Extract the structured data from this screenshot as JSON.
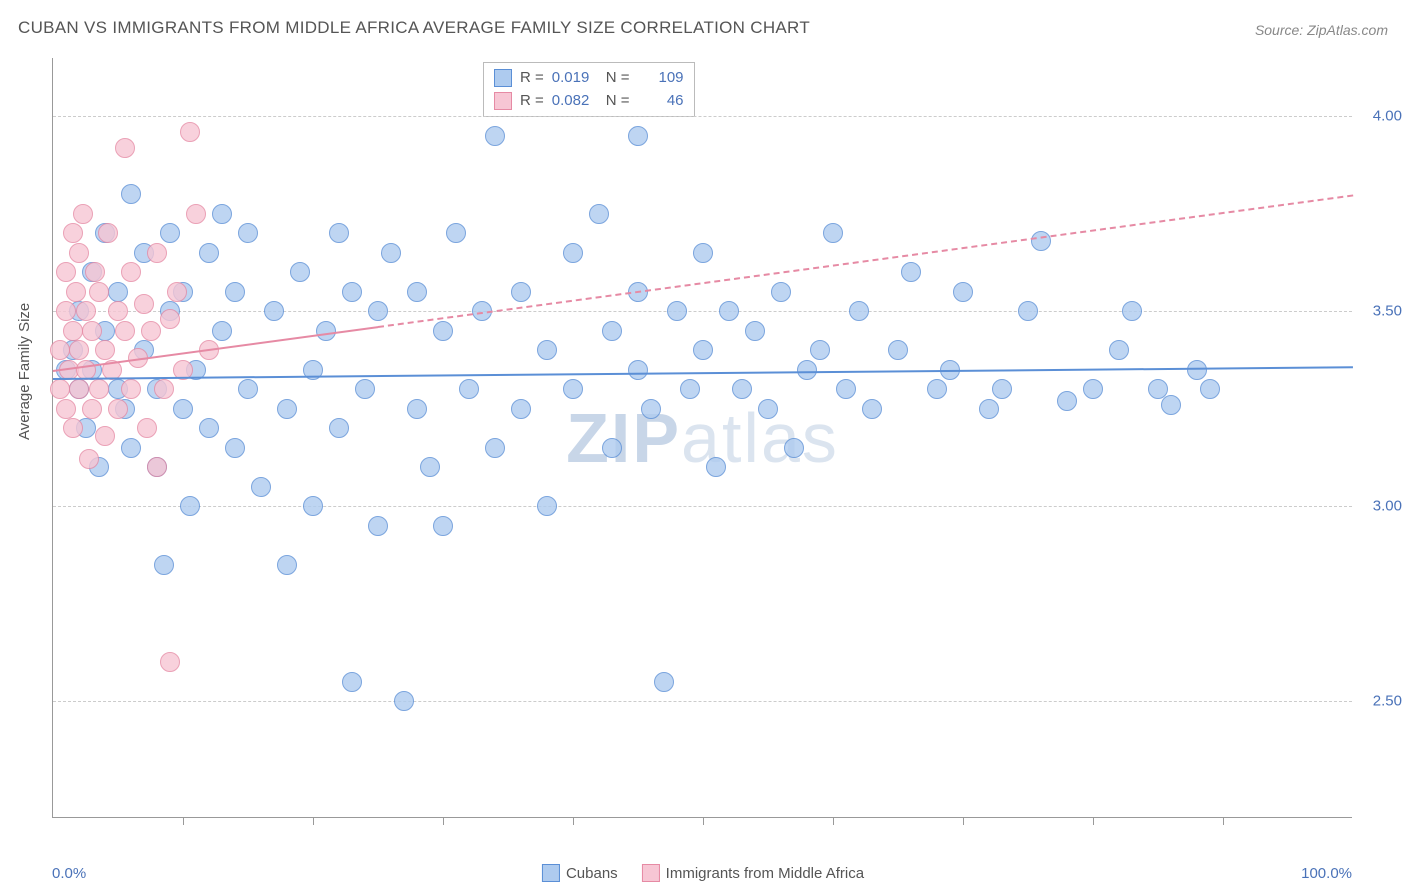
{
  "title": "CUBAN VS IMMIGRANTS FROM MIDDLE AFRICA AVERAGE FAMILY SIZE CORRELATION CHART",
  "source": "Source: ZipAtlas.com",
  "ylabel": "Average Family Size",
  "watermark_bold": "ZIP",
  "watermark_rest": "atlas",
  "chart": {
    "type": "scatter",
    "xlim": [
      0,
      100
    ],
    "ylim": [
      2.2,
      4.15
    ],
    "x_tick_step": 10,
    "y_ticks": [
      2.5,
      3.0,
      3.5,
      4.0
    ],
    "x_min_label": "0.0%",
    "x_max_label": "100.0%",
    "grid_color": "#cccccc",
    "axis_color": "#999999",
    "background_color": "#ffffff",
    "tick_label_color": "#4a72b8",
    "marker_radius": 10,
    "marker_stroke_width": 1.5,
    "marker_fill_opacity": 0.35,
    "series": [
      {
        "name": "Cubans",
        "stroke": "#5b8fd6",
        "fill": "#aecbef",
        "R": "0.019",
        "N": "109",
        "trend": {
          "y_at_x0": 3.33,
          "y_at_x100": 3.36,
          "solid_until_x": 100,
          "width": 2
        },
        "points": [
          [
            1,
            3.35
          ],
          [
            1.5,
            3.4
          ],
          [
            2,
            3.3
          ],
          [
            2,
            3.5
          ],
          [
            2.5,
            3.2
          ],
          [
            3,
            3.6
          ],
          [
            3,
            3.35
          ],
          [
            3.5,
            3.1
          ],
          [
            4,
            3.7
          ],
          [
            4,
            3.45
          ],
          [
            5,
            3.3
          ],
          [
            5,
            3.55
          ],
          [
            5.5,
            3.25
          ],
          [
            6,
            3.8
          ],
          [
            6,
            3.15
          ],
          [
            7,
            3.4
          ],
          [
            7,
            3.65
          ],
          [
            8,
            3.3
          ],
          [
            8,
            3.1
          ],
          [
            8.5,
            2.85
          ],
          [
            9,
            3.5
          ],
          [
            9,
            3.7
          ],
          [
            10,
            3.25
          ],
          [
            10,
            3.55
          ],
          [
            10.5,
            3.0
          ],
          [
            11,
            3.35
          ],
          [
            12,
            3.65
          ],
          [
            12,
            3.2
          ],
          [
            13,
            3.45
          ],
          [
            13,
            3.75
          ],
          [
            14,
            3.15
          ],
          [
            14,
            3.55
          ],
          [
            15,
            3.3
          ],
          [
            15,
            3.7
          ],
          [
            16,
            3.05
          ],
          [
            17,
            3.5
          ],
          [
            18,
            2.85
          ],
          [
            18,
            3.25
          ],
          [
            19,
            3.6
          ],
          [
            20,
            3.35
          ],
          [
            20,
            3.0
          ],
          [
            21,
            3.45
          ],
          [
            22,
            3.7
          ],
          [
            22,
            3.2
          ],
          [
            23,
            2.55
          ],
          [
            23,
            3.55
          ],
          [
            24,
            3.3
          ],
          [
            25,
            2.95
          ],
          [
            25,
            3.5
          ],
          [
            26,
            3.65
          ],
          [
            27,
            2.5
          ],
          [
            28,
            3.25
          ],
          [
            28,
            3.55
          ],
          [
            29,
            3.1
          ],
          [
            30,
            3.45
          ],
          [
            30,
            2.95
          ],
          [
            31,
            3.7
          ],
          [
            32,
            3.3
          ],
          [
            33,
            3.5
          ],
          [
            34,
            3.95
          ],
          [
            34,
            3.15
          ],
          [
            36,
            3.25
          ],
          [
            36,
            3.55
          ],
          [
            38,
            3.4
          ],
          [
            38,
            3.0
          ],
          [
            40,
            3.65
          ],
          [
            40,
            3.3
          ],
          [
            42,
            3.75
          ],
          [
            43,
            3.45
          ],
          [
            43,
            3.15
          ],
          [
            45,
            3.35
          ],
          [
            45,
            3.55
          ],
          [
            46,
            3.25
          ],
          [
            47,
            2.55
          ],
          [
            48,
            3.5
          ],
          [
            49,
            3.3
          ],
          [
            50,
            3.4
          ],
          [
            50,
            3.65
          ],
          [
            51,
            3.1
          ],
          [
            52,
            3.5
          ],
          [
            53,
            3.3
          ],
          [
            54,
            3.45
          ],
          [
            55,
            3.25
          ],
          [
            56,
            3.55
          ],
          [
            57,
            3.15
          ],
          [
            58,
            3.35
          ],
          [
            59,
            3.4
          ],
          [
            60,
            3.7
          ],
          [
            61,
            3.3
          ],
          [
            62,
            3.5
          ],
          [
            63,
            3.25
          ],
          [
            65,
            3.4
          ],
          [
            66,
            3.6
          ],
          [
            68,
            3.3
          ],
          [
            69,
            3.35
          ],
          [
            70,
            3.55
          ],
          [
            72,
            3.25
          ],
          [
            73,
            3.3
          ],
          [
            75,
            3.5
          ],
          [
            76,
            3.68
          ],
          [
            78,
            3.27
          ],
          [
            80,
            3.3
          ],
          [
            82,
            3.4
          ],
          [
            83,
            3.5
          ],
          [
            85,
            3.3
          ],
          [
            86,
            3.26
          ],
          [
            88,
            3.35
          ],
          [
            89,
            3.3
          ],
          [
            45,
            3.95
          ]
        ]
      },
      {
        "name": "Immigrants from Middle Africa",
        "stroke": "#e68aa4",
        "fill": "#f7c6d4",
        "R": "0.082",
        "N": "46",
        "trend": {
          "y_at_x0": 3.35,
          "y_at_x100": 3.8,
          "solid_until_x": 25,
          "width": 2
        },
        "points": [
          [
            0.5,
            3.3
          ],
          [
            0.5,
            3.4
          ],
          [
            1,
            3.25
          ],
          [
            1,
            3.5
          ],
          [
            1,
            3.6
          ],
          [
            1.2,
            3.35
          ],
          [
            1.5,
            3.45
          ],
          [
            1.5,
            3.7
          ],
          [
            1.5,
            3.2
          ],
          [
            1.8,
            3.55
          ],
          [
            2,
            3.3
          ],
          [
            2,
            3.65
          ],
          [
            2,
            3.4
          ],
          [
            2.3,
            3.75
          ],
          [
            2.5,
            3.35
          ],
          [
            2.5,
            3.5
          ],
          [
            2.8,
            3.12
          ],
          [
            3,
            3.45
          ],
          [
            3,
            3.25
          ],
          [
            3.2,
            3.6
          ],
          [
            3.5,
            3.3
          ],
          [
            3.5,
            3.55
          ],
          [
            4,
            3.4
          ],
          [
            4,
            3.18
          ],
          [
            4.2,
            3.7
          ],
          [
            4.5,
            3.35
          ],
          [
            5,
            3.5
          ],
          [
            5,
            3.25
          ],
          [
            5.5,
            3.45
          ],
          [
            5.5,
            3.92
          ],
          [
            6,
            3.3
          ],
          [
            6,
            3.6
          ],
          [
            6.5,
            3.38
          ],
          [
            7,
            3.52
          ],
          [
            7.2,
            3.2
          ],
          [
            7.5,
            3.45
          ],
          [
            8,
            3.65
          ],
          [
            8.5,
            3.3
          ],
          [
            9,
            3.48
          ],
          [
            9.5,
            3.55
          ],
          [
            10,
            3.35
          ],
          [
            10.5,
            3.96
          ],
          [
            11,
            3.75
          ],
          [
            12,
            3.4
          ],
          [
            9,
            2.6
          ],
          [
            8,
            3.1
          ]
        ]
      }
    ]
  },
  "legend_bottom": [
    {
      "label": "Cubans",
      "stroke": "#5b8fd6",
      "fill": "#aecbef"
    },
    {
      "label": "Immigrants from Middle Africa",
      "stroke": "#e68aa4",
      "fill": "#f7c6d4"
    }
  ]
}
